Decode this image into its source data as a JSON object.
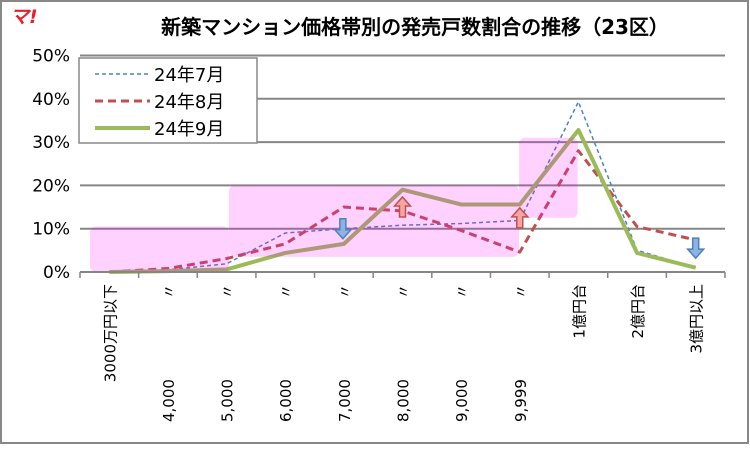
{
  "logo": "マ!",
  "chart_data": {
    "type": "line",
    "title": "新築マンション価格帯別の発売戸数割合の推移（23区）",
    "xlabel": "",
    "ylabel": "",
    "ylim": [
      0,
      50
    ],
    "yticks": [
      "0%",
      "10%",
      "20%",
      "30%",
      "40%",
      "50%"
    ],
    "yunit": "%",
    "grid": true,
    "legend_position": "top-left",
    "categories": [
      {
        "ditto": "",
        "value": "3000万円以下"
      },
      {
        "ditto": "〃",
        "value": "4,000"
      },
      {
        "ditto": "〃",
        "value": "5,000"
      },
      {
        "ditto": "〃",
        "value": "6,000"
      },
      {
        "ditto": "〃",
        "value": "7,000"
      },
      {
        "ditto": "〃",
        "value": "8,000"
      },
      {
        "ditto": "〃",
        "value": "9,000"
      },
      {
        "ditto": "〃",
        "value": "9,999"
      },
      {
        "ditto": "",
        "value": "1億円台"
      },
      {
        "ditto": "",
        "value": "2億円台"
      },
      {
        "ditto": "",
        "value": "3億円以上"
      }
    ],
    "series": [
      {
        "name": "24年7月",
        "color": "#4f81bd",
        "style": "dotted-thin",
        "values": [
          0,
          0.5,
          1.9,
          9.0,
          10.0,
          10.8,
          11.2,
          11.9,
          39.3,
          5.0,
          1.0
        ]
      },
      {
        "name": "24年8月",
        "color": "#c0504d",
        "style": "dashed",
        "values": [
          0,
          0.8,
          3.1,
          6.5,
          15.0,
          14.1,
          9.6,
          4.6,
          28.0,
          10.5,
          7.4
        ]
      },
      {
        "name": "24年9月",
        "color": "#9bbb59",
        "style": "solid-thick",
        "values": [
          0,
          0.2,
          0.6,
          4.4,
          6.5,
          19.0,
          15.6,
          15.6,
          32.8,
          4.4,
          1.0
        ]
      }
    ],
    "highlight_bands": [
      {
        "from_category": 0,
        "to_category": 2,
        "ylim": [
          0,
          10.5
        ],
        "color": "#ff00ff"
      },
      {
        "from_category": 3,
        "to_category": 7,
        "ylim": [
          3.5,
          20
        ],
        "color": "#ff00ff"
      },
      {
        "from_category": 8,
        "to_category": 8,
        "ylim": [
          12.5,
          31
        ],
        "color": "#ff00ff"
      }
    ],
    "annotations": [
      {
        "type": "arrow-down",
        "category": 4,
        "value": 10,
        "color": "#8db3e2"
      },
      {
        "type": "arrow-up",
        "category": 5,
        "value": 15,
        "color": "#f2a7a3"
      },
      {
        "type": "arrow-up",
        "category": 7,
        "value": 12.5,
        "color": "#f2a7a3"
      },
      {
        "type": "arrow-down",
        "category": 10,
        "value": 5.5,
        "color": "#8db3e2"
      }
    ]
  }
}
